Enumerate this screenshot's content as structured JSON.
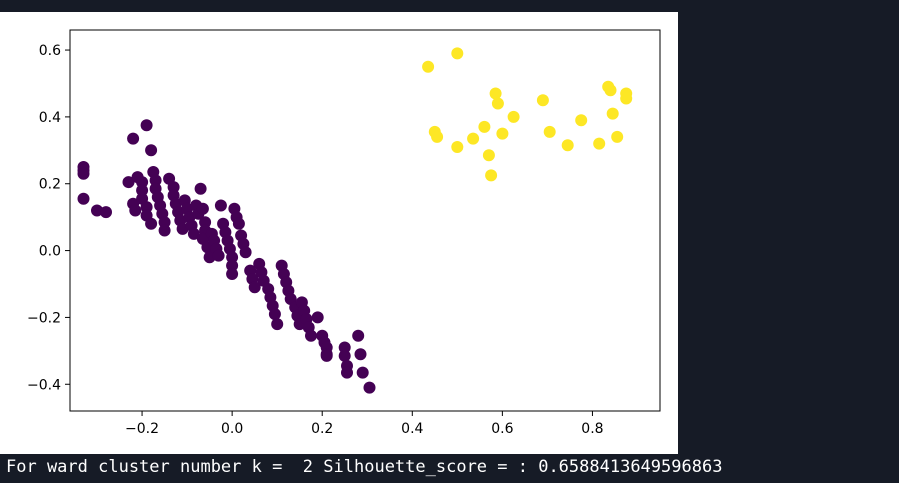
{
  "output": {
    "text": "For ward cluster number k =  2 Silhouette_score = : 0.6588413649596863"
  },
  "chart_data": {
    "type": "scatter",
    "title": "",
    "xlabel": "",
    "ylabel": "",
    "xlim": [
      -0.36,
      0.95
    ],
    "ylim": [
      -0.48,
      0.66
    ],
    "grid": false,
    "legend": "none",
    "xticks": [
      -0.2,
      0.0,
      0.2,
      0.4,
      0.6,
      0.8
    ],
    "xtick_labels": [
      "−0.2",
      "0.0",
      "0.2",
      "0.4",
      "0.6",
      "0.8"
    ],
    "yticks": [
      0.6,
      0.4,
      0.2,
      0.0,
      -0.2,
      -0.4
    ],
    "ytick_labels": [
      "0.6",
      "0.4",
      "0.2",
      "0.0",
      "−0.2",
      "−0.4"
    ],
    "series": [
      {
        "cluster": 0,
        "color": "#440154",
        "points": [
          [
            -0.33,
            0.25
          ],
          [
            -0.33,
            0.24
          ],
          [
            -0.33,
            0.23
          ],
          [
            -0.33,
            0.155
          ],
          [
            -0.3,
            0.12
          ],
          [
            -0.28,
            0.115
          ],
          [
            -0.23,
            0.205
          ],
          [
            -0.22,
            0.335
          ],
          [
            -0.22,
            0.14
          ],
          [
            -0.21,
            0.22
          ],
          [
            -0.215,
            0.12
          ],
          [
            -0.19,
            0.375
          ],
          [
            -0.18,
            0.3
          ],
          [
            -0.2,
            0.205
          ],
          [
            -0.2,
            0.18
          ],
          [
            -0.2,
            0.155
          ],
          [
            -0.19,
            0.13
          ],
          [
            -0.19,
            0.105
          ],
          [
            -0.18,
            0.08
          ],
          [
            -0.175,
            0.235
          ],
          [
            -0.17,
            0.21
          ],
          [
            -0.17,
            0.185
          ],
          [
            -0.165,
            0.16
          ],
          [
            -0.16,
            0.135
          ],
          [
            -0.155,
            0.11
          ],
          [
            -0.15,
            0.085
          ],
          [
            -0.15,
            0.06
          ],
          [
            -0.14,
            0.215
          ],
          [
            -0.13,
            0.19
          ],
          [
            -0.13,
            0.165
          ],
          [
            -0.125,
            0.14
          ],
          [
            -0.12,
            0.115
          ],
          [
            -0.115,
            0.09
          ],
          [
            -0.11,
            0.065
          ],
          [
            -0.105,
            0.15
          ],
          [
            -0.1,
            0.125
          ],
          [
            -0.095,
            0.1
          ],
          [
            -0.09,
            0.075
          ],
          [
            -0.085,
            0.05
          ],
          [
            -0.08,
            0.135
          ],
          [
            -0.075,
            0.11
          ],
          [
            -0.07,
            0.185
          ],
          [
            -0.065,
            0.125
          ],
          [
            -0.06,
            0.085
          ],
          [
            -0.06,
            0.06
          ],
          [
            -0.065,
            0.035
          ],
          [
            -0.055,
            0.01
          ],
          [
            -0.05,
            -0.02
          ],
          [
            -0.045,
            0.05
          ],
          [
            -0.04,
            0.03
          ],
          [
            -0.035,
            0.005
          ],
          [
            -0.03,
            -0.015
          ],
          [
            -0.025,
            0.135
          ],
          [
            -0.02,
            0.08
          ],
          [
            -0.015,
            0.055
          ],
          [
            -0.01,
            0.03
          ],
          [
            -0.005,
            0.005
          ],
          [
            0.0,
            -0.02
          ],
          [
            0.0,
            -0.045
          ],
          [
            0.0,
            -0.07
          ],
          [
            0.005,
            0.125
          ],
          [
            0.01,
            0.1
          ],
          [
            0.015,
            0.08
          ],
          [
            0.02,
            0.045
          ],
          [
            0.025,
            0.02
          ],
          [
            0.03,
            -0.005
          ],
          [
            0.04,
            -0.06
          ],
          [
            0.045,
            -0.085
          ],
          [
            0.05,
            -0.11
          ],
          [
            0.06,
            -0.04
          ],
          [
            0.065,
            -0.065
          ],
          [
            0.07,
            -0.09
          ],
          [
            0.08,
            -0.115
          ],
          [
            0.085,
            -0.14
          ],
          [
            0.09,
            -0.165
          ],
          [
            0.095,
            -0.19
          ],
          [
            0.1,
            -0.22
          ],
          [
            0.11,
            -0.045
          ],
          [
            0.115,
            -0.07
          ],
          [
            0.12,
            -0.095
          ],
          [
            0.125,
            -0.12
          ],
          [
            0.13,
            -0.145
          ],
          [
            0.14,
            -0.17
          ],
          [
            0.145,
            -0.195
          ],
          [
            0.15,
            -0.22
          ],
          [
            0.155,
            -0.155
          ],
          [
            0.16,
            -0.18
          ],
          [
            0.165,
            -0.205
          ],
          [
            0.17,
            -0.23
          ],
          [
            0.175,
            -0.255
          ],
          [
            0.19,
            -0.2
          ],
          [
            0.2,
            -0.255
          ],
          [
            0.205,
            -0.275
          ],
          [
            0.21,
            -0.29
          ],
          [
            0.21,
            -0.31
          ],
          [
            0.21,
            -0.315
          ],
          [
            0.25,
            -0.29
          ],
          [
            0.25,
            -0.315
          ],
          [
            0.255,
            -0.345
          ],
          [
            0.255,
            -0.365
          ],
          [
            0.28,
            -0.255
          ],
          [
            0.285,
            -0.31
          ],
          [
            0.29,
            -0.365
          ],
          [
            0.305,
            -0.41
          ]
        ]
      },
      {
        "cluster": 1,
        "color": "#fde725",
        "points": [
          [
            0.435,
            0.55
          ],
          [
            0.45,
            0.355
          ],
          [
            0.455,
            0.34
          ],
          [
            0.5,
            0.59
          ],
          [
            0.5,
            0.31
          ],
          [
            0.535,
            0.335
          ],
          [
            0.56,
            0.37
          ],
          [
            0.57,
            0.285
          ],
          [
            0.575,
            0.225
          ],
          [
            0.585,
            0.47
          ],
          [
            0.59,
            0.44
          ],
          [
            0.6,
            0.35
          ],
          [
            0.625,
            0.4
          ],
          [
            0.69,
            0.45
          ],
          [
            0.705,
            0.355
          ],
          [
            0.745,
            0.315
          ],
          [
            0.775,
            0.39
          ],
          [
            0.815,
            0.32
          ],
          [
            0.835,
            0.49
          ],
          [
            0.84,
            0.48
          ],
          [
            0.845,
            0.41
          ],
          [
            0.855,
            0.34
          ],
          [
            0.875,
            0.47
          ],
          [
            0.875,
            0.455
          ]
        ]
      }
    ]
  }
}
